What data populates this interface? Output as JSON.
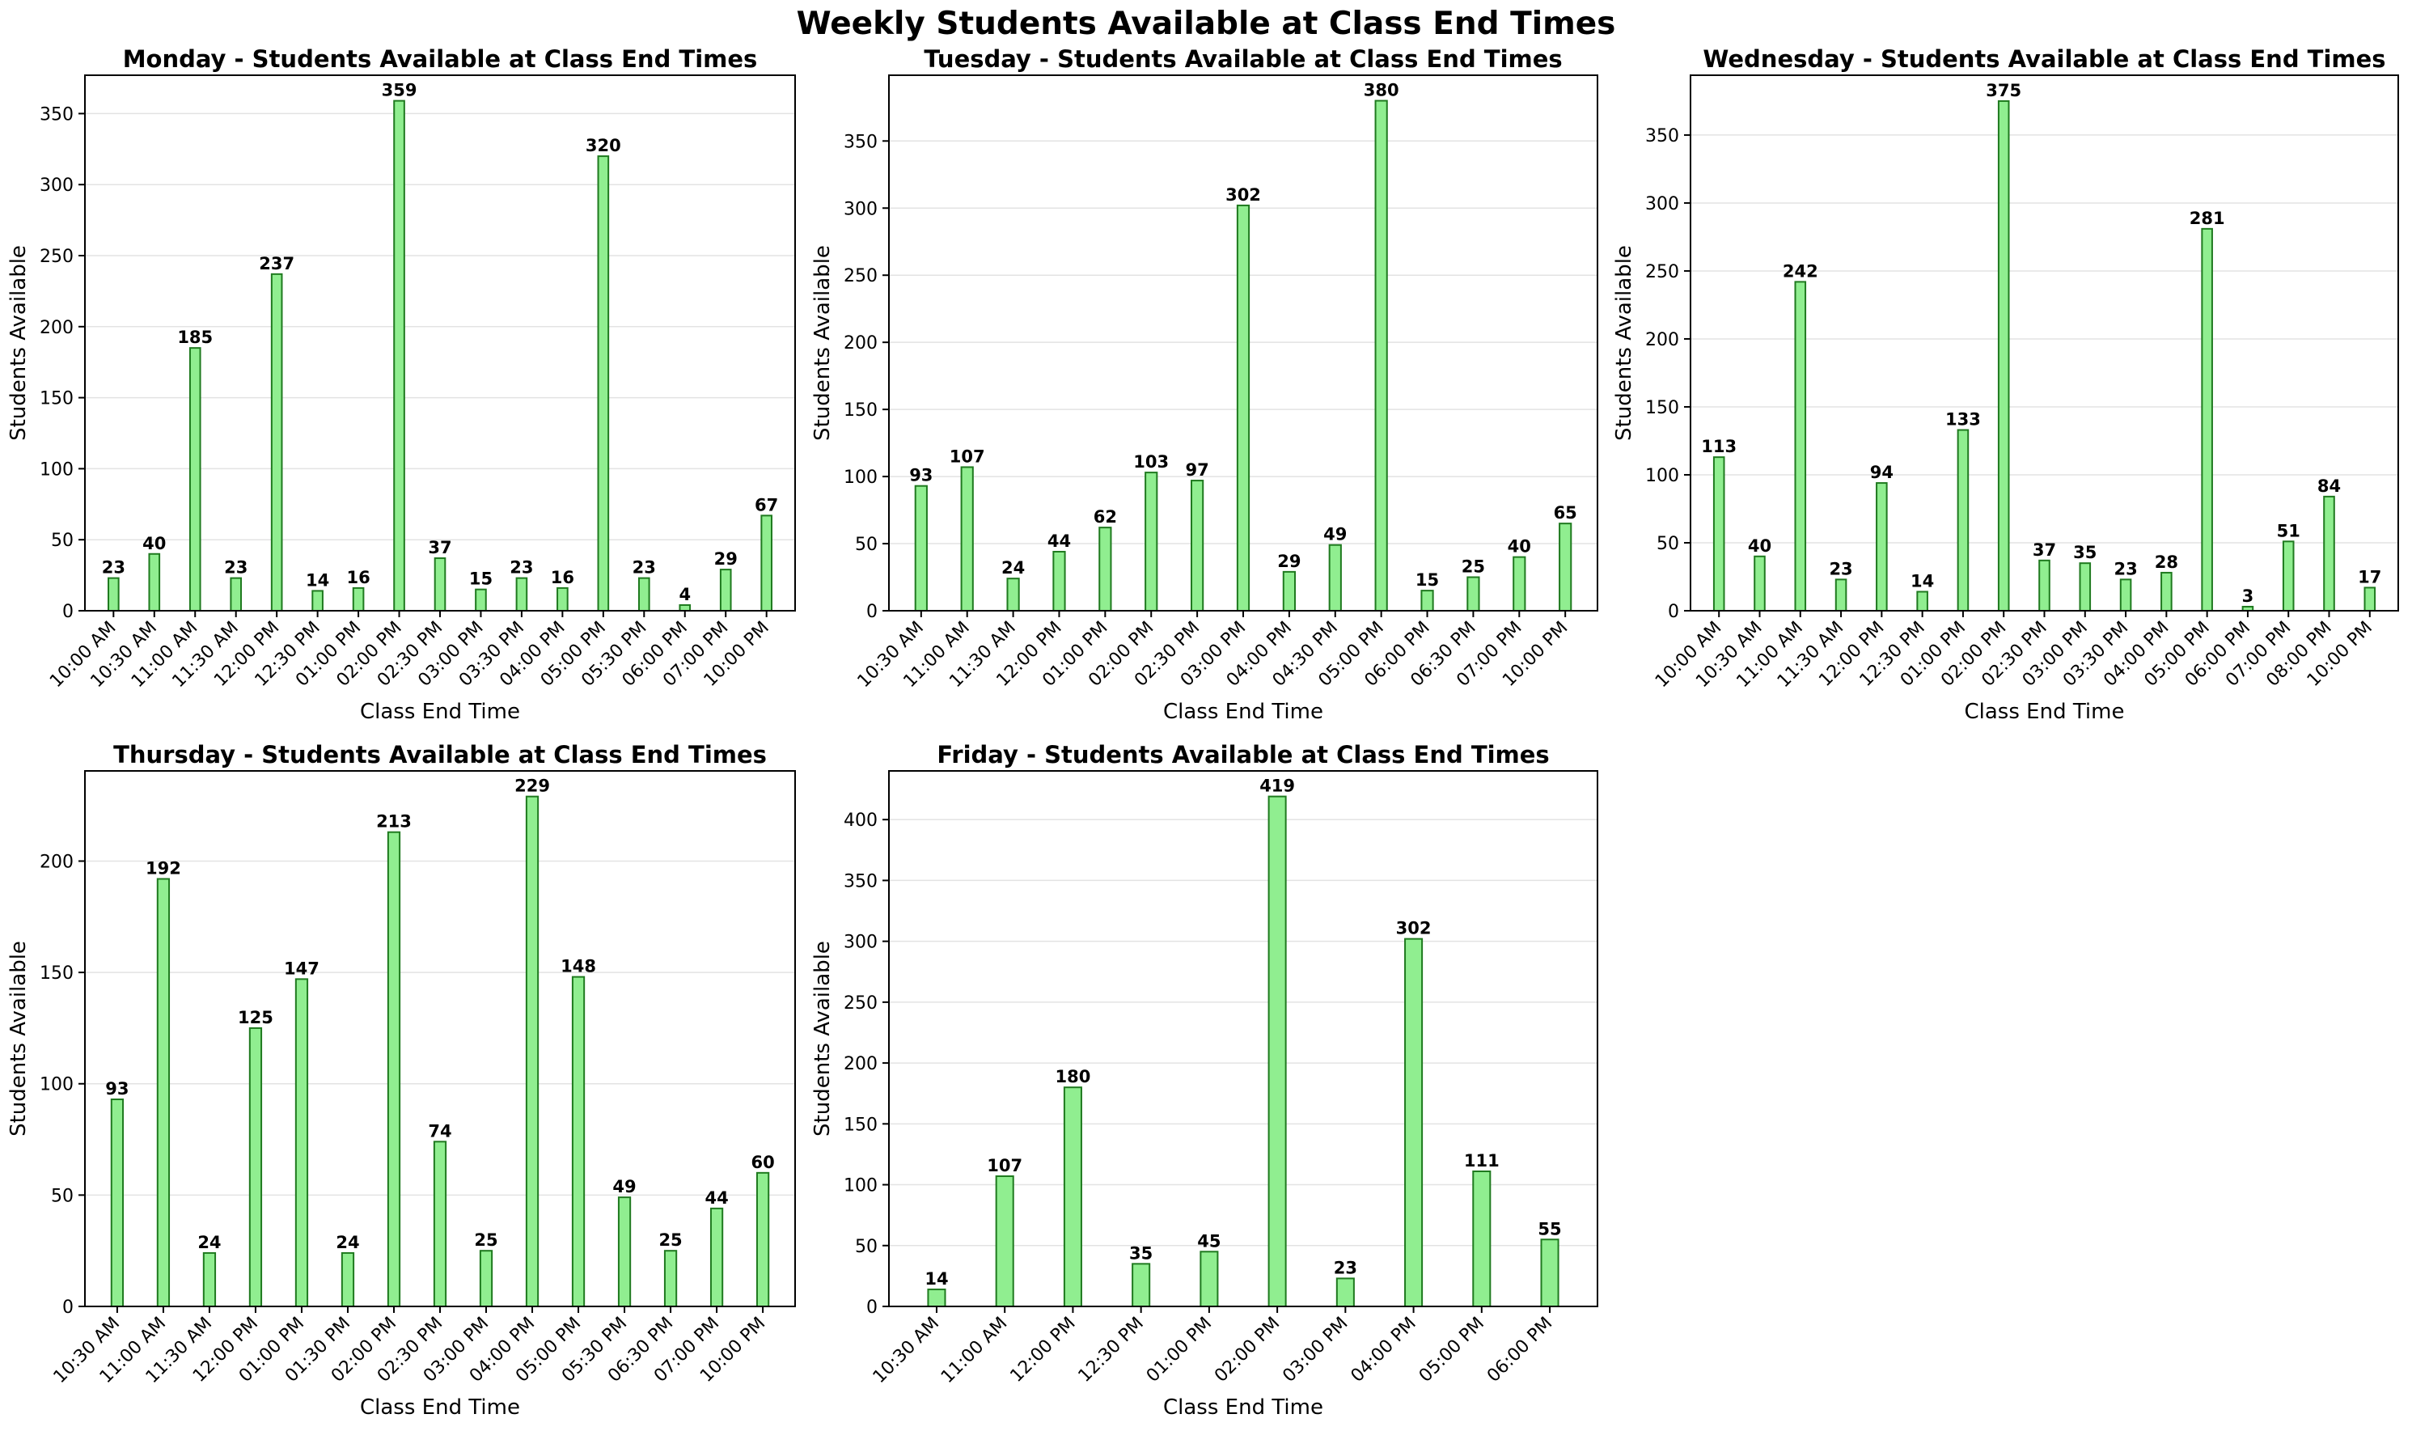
{
  "title": "Weekly Students Available at Class End Times",
  "chart_data": [
    {
      "type": "bar",
      "title": "Monday - Students Available at Class End Times",
      "xlabel": "Class End Time",
      "ylabel": "Students Available",
      "categories": [
        "10:00 AM",
        "10:30 AM",
        "11:00 AM",
        "11:30 AM",
        "12:00 PM",
        "12:30 PM",
        "01:00 PM",
        "02:00 PM",
        "02:30 PM",
        "03:00 PM",
        "03:30 PM",
        "04:00 PM",
        "05:00 PM",
        "05:30 PM",
        "06:00 PM",
        "07:00 PM",
        "10:00 PM"
      ],
      "values": [
        23,
        40,
        185,
        23,
        237,
        14,
        16,
        359,
        37,
        15,
        23,
        16,
        320,
        23,
        4,
        29,
        67
      ],
      "ylim": [
        0,
        377
      ],
      "yticks": [
        0,
        50,
        100,
        150,
        200,
        250,
        300,
        350
      ],
      "grid": "y",
      "color": "#90ee90",
      "edge_color": "#1f7a1f"
    },
    {
      "type": "bar",
      "title": "Tuesday - Students Available at Class End Times",
      "xlabel": "Class End Time",
      "ylabel": "Students Available",
      "categories": [
        "10:30 AM",
        "11:00 AM",
        "11:30 AM",
        "12:00 PM",
        "01:00 PM",
        "02:00 PM",
        "02:30 PM",
        "03:00 PM",
        "04:00 PM",
        "04:30 PM",
        "05:00 PM",
        "06:00 PM",
        "06:30 PM",
        "07:00 PM",
        "10:00 PM"
      ],
      "values": [
        93,
        107,
        24,
        44,
        62,
        103,
        97,
        302,
        29,
        49,
        380,
        15,
        25,
        40,
        65
      ],
      "ylim": [
        0,
        399
      ],
      "yticks": [
        0,
        50,
        100,
        150,
        200,
        250,
        300,
        350
      ],
      "grid": "y",
      "color": "#90ee90",
      "edge_color": "#1f7a1f"
    },
    {
      "type": "bar",
      "title": "Wednesday - Students Available at Class End Times",
      "xlabel": "Class End Time",
      "ylabel": "Students Available",
      "categories": [
        "10:00 AM",
        "10:30 AM",
        "11:00 AM",
        "11:30 AM",
        "12:00 PM",
        "12:30 PM",
        "01:00 PM",
        "02:00 PM",
        "02:30 PM",
        "03:00 PM",
        "03:30 PM",
        "04:00 PM",
        "05:00 PM",
        "06:00 PM",
        "07:00 PM",
        "08:00 PM",
        "10:00 PM"
      ],
      "values": [
        113,
        40,
        242,
        23,
        94,
        14,
        133,
        375,
        37,
        35,
        23,
        28,
        281,
        3,
        51,
        84,
        17
      ],
      "ylim": [
        0,
        394
      ],
      "yticks": [
        0,
        50,
        100,
        150,
        200,
        250,
        300,
        350
      ],
      "grid": "y",
      "color": "#90ee90",
      "edge_color": "#1f7a1f"
    },
    {
      "type": "bar",
      "title": "Thursday - Students Available at Class End Times",
      "xlabel": "Class End Time",
      "ylabel": "Students Available",
      "categories": [
        "10:30 AM",
        "11:00 AM",
        "11:30 AM",
        "12:00 PM",
        "01:00 PM",
        "01:30 PM",
        "02:00 PM",
        "02:30 PM",
        "03:00 PM",
        "04:00 PM",
        "05:00 PM",
        "05:30 PM",
        "06:30 PM",
        "07:00 PM",
        "10:00 PM"
      ],
      "values": [
        93,
        192,
        24,
        125,
        147,
        24,
        213,
        74,
        25,
        229,
        148,
        49,
        25,
        44,
        60
      ],
      "ylim": [
        0,
        240.5
      ],
      "yticks": [
        0,
        50,
        100,
        150,
        200
      ],
      "grid": "y",
      "color": "#90ee90",
      "edge_color": "#1f7a1f"
    },
    {
      "type": "bar",
      "title": "Friday - Students Available at Class End Times",
      "xlabel": "Class End Time",
      "ylabel": "Students Available",
      "categories": [
        "10:30 AM",
        "11:00 AM",
        "12:00 PM",
        "12:30 PM",
        "01:00 PM",
        "02:00 PM",
        "03:00 PM",
        "04:00 PM",
        "05:00 PM",
        "06:00 PM"
      ],
      "values": [
        14,
        107,
        180,
        35,
        45,
        419,
        23,
        302,
        111,
        55
      ],
      "ylim": [
        0,
        440
      ],
      "yticks": [
        0,
        50,
        100,
        150,
        200,
        250,
        300,
        350,
        400
      ],
      "grid": "y",
      "color": "#90ee90",
      "edge_color": "#1f7a1f"
    }
  ]
}
